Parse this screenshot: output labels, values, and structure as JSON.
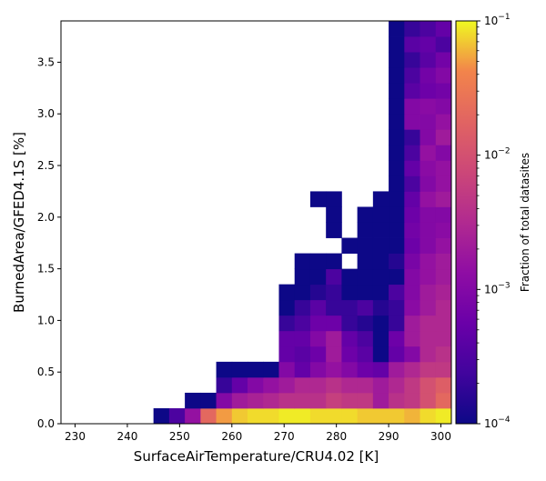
{
  "chart_data": {
    "type": "heatmap",
    "xlabel": "SurfaceAirTemperature/CRU4.02 [K]",
    "ylabel": "BurnedArea/GFED4.1S [%]",
    "xlim": [
      227.3,
      302.0
    ],
    "ylim": [
      0.0,
      3.9
    ],
    "x_ticks": [
      230,
      240,
      250,
      260,
      270,
      280,
      290,
      300
    ],
    "y_ticks": [
      0.0,
      0.5,
      1.0,
      1.5,
      2.0,
      2.5,
      3.0,
      3.5
    ],
    "x_tick_labels": [
      "230",
      "240",
      "250",
      "260",
      "270",
      "280",
      "290",
      "300"
    ],
    "y_tick_labels": [
      "0.0",
      "0.5",
      "1.0",
      "1.5",
      "2.0",
      "2.5",
      "3.0",
      "3.5"
    ],
    "x_bin_edges_start": 245.0,
    "x_bin_width": 3.0,
    "y_bin_width": 0.15,
    "colormap": "plasma",
    "color_scale": "log",
    "colorbar": {
      "label": "Fraction of total datasites",
      "min": 0.0001,
      "max": 0.1,
      "ticks": [
        {
          "base": "10",
          "exp": "−4",
          "value": 0.0001
        },
        {
          "base": "10",
          "exp": "−3",
          "value": 0.001
        },
        {
          "base": "10",
          "exp": "−2",
          "value": 0.01
        },
        {
          "base": "10",
          "exp": "−1",
          "value": 0.1
        }
      ]
    },
    "cells": [
      [
        245.0,
        0.0,
        0.0001
      ],
      [
        248.0,
        0.0,
        0.0003
      ],
      [
        251.0,
        0.0,
        0.0015
      ],
      [
        254.0,
        0.0,
        0.02
      ],
      [
        257.0,
        0.0,
        0.05
      ],
      [
        260.0,
        0.0,
        0.07
      ],
      [
        263.0,
        0.0,
        0.08
      ],
      [
        266.0,
        0.0,
        0.08
      ],
      [
        269.0,
        0.0,
        0.09
      ],
      [
        272.0,
        0.0,
        0.09
      ],
      [
        275.0,
        0.0,
        0.08
      ],
      [
        278.0,
        0.0,
        0.08
      ],
      [
        281.0,
        0.0,
        0.08
      ],
      [
        284.0,
        0.0,
        0.07
      ],
      [
        287.0,
        0.0,
        0.07
      ],
      [
        290.0,
        0.0,
        0.07
      ],
      [
        293.0,
        0.0,
        0.06
      ],
      [
        296.0,
        0.0,
        0.08
      ],
      [
        299.0,
        0.0,
        0.09
      ],
      [
        251.0,
        0.15,
        0.0001
      ],
      [
        254.0,
        0.15,
        0.0001
      ],
      [
        257.0,
        0.15,
        0.001
      ],
      [
        260.0,
        0.15,
        0.002
      ],
      [
        263.0,
        0.15,
        0.0025
      ],
      [
        266.0,
        0.15,
        0.003
      ],
      [
        269.0,
        0.15,
        0.004
      ],
      [
        272.0,
        0.15,
        0.004
      ],
      [
        275.0,
        0.15,
        0.004
      ],
      [
        278.0,
        0.15,
        0.006
      ],
      [
        281.0,
        0.15,
        0.005
      ],
      [
        284.0,
        0.15,
        0.005
      ],
      [
        287.0,
        0.15,
        0.002
      ],
      [
        290.0,
        0.15,
        0.004
      ],
      [
        293.0,
        0.15,
        0.005
      ],
      [
        296.0,
        0.15,
        0.01
      ],
      [
        299.0,
        0.15,
        0.02
      ],
      [
        257.0,
        0.3,
        0.0002
      ],
      [
        260.0,
        0.3,
        0.0005
      ],
      [
        263.0,
        0.3,
        0.001
      ],
      [
        266.0,
        0.3,
        0.0015
      ],
      [
        269.0,
        0.3,
        0.002
      ],
      [
        272.0,
        0.3,
        0.003
      ],
      [
        275.0,
        0.3,
        0.003
      ],
      [
        278.0,
        0.3,
        0.004
      ],
      [
        281.0,
        0.3,
        0.003
      ],
      [
        284.0,
        0.3,
        0.003
      ],
      [
        287.0,
        0.3,
        0.002
      ],
      [
        290.0,
        0.3,
        0.003
      ],
      [
        293.0,
        0.3,
        0.005
      ],
      [
        296.0,
        0.3,
        0.01
      ],
      [
        299.0,
        0.3,
        0.015
      ],
      [
        257.0,
        0.45,
        0.0001
      ],
      [
        260.0,
        0.45,
        0.0001
      ],
      [
        263.0,
        0.45,
        0.0001
      ],
      [
        266.0,
        0.45,
        0.0001
      ],
      [
        269.0,
        0.45,
        0.001
      ],
      [
        272.0,
        0.45,
        0.0005
      ],
      [
        275.0,
        0.45,
        0.001
      ],
      [
        278.0,
        0.45,
        0.0015
      ],
      [
        281.0,
        0.45,
        0.001
      ],
      [
        284.0,
        0.45,
        0.0006
      ],
      [
        287.0,
        0.45,
        0.0005
      ],
      [
        290.0,
        0.45,
        0.002
      ],
      [
        293.0,
        0.45,
        0.003
      ],
      [
        296.0,
        0.45,
        0.005
      ],
      [
        299.0,
        0.45,
        0.005
      ],
      [
        269.0,
        0.6,
        0.0005
      ],
      [
        272.0,
        0.6,
        0.0004
      ],
      [
        275.0,
        0.6,
        0.0006
      ],
      [
        278.0,
        0.6,
        0.002
      ],
      [
        281.0,
        0.6,
        0.0006
      ],
      [
        284.0,
        0.6,
        0.0004
      ],
      [
        287.0,
        0.6,
        0.0001
      ],
      [
        290.0,
        0.6,
        0.0005
      ],
      [
        293.0,
        0.6,
        0.001
      ],
      [
        296.0,
        0.6,
        0.003
      ],
      [
        299.0,
        0.6,
        0.004
      ],
      [
        269.0,
        0.75,
        0.0005
      ],
      [
        272.0,
        0.75,
        0.0005
      ],
      [
        275.0,
        0.75,
        0.001
      ],
      [
        278.0,
        0.75,
        0.002
      ],
      [
        281.0,
        0.75,
        0.0005
      ],
      [
        284.0,
        0.75,
        0.0003
      ],
      [
        287.0,
        0.75,
        0.0001
      ],
      [
        290.0,
        0.75,
        0.0006
      ],
      [
        293.0,
        0.75,
        0.002
      ],
      [
        296.0,
        0.75,
        0.003
      ],
      [
        299.0,
        0.75,
        0.003
      ],
      [
        269.0,
        0.9,
        0.0002
      ],
      [
        272.0,
        0.9,
        0.0003
      ],
      [
        275.0,
        0.9,
        0.0006
      ],
      [
        278.0,
        0.9,
        0.0006
      ],
      [
        281.0,
        0.9,
        0.0002
      ],
      [
        284.0,
        0.9,
        0.00015
      ],
      [
        287.0,
        0.9,
        0.0001
      ],
      [
        290.0,
        0.9,
        0.0002
      ],
      [
        293.0,
        0.9,
        0.002
      ],
      [
        296.0,
        0.9,
        0.003
      ],
      [
        299.0,
        0.9,
        0.003
      ],
      [
        269.0,
        1.05,
        0.0001
      ],
      [
        272.0,
        1.05,
        0.0002
      ],
      [
        275.0,
        1.05,
        0.0004
      ],
      [
        278.0,
        1.05,
        0.0002
      ],
      [
        281.0,
        1.05,
        0.0002
      ],
      [
        284.0,
        1.05,
        0.0003
      ],
      [
        287.0,
        1.05,
        0.00015
      ],
      [
        290.0,
        1.05,
        0.0002
      ],
      [
        293.0,
        1.05,
        0.0012
      ],
      [
        296.0,
        1.05,
        0.002
      ],
      [
        299.0,
        1.05,
        0.003
      ],
      [
        269.0,
        1.2,
        0.0001
      ],
      [
        272.0,
        1.2,
        0.0001
      ],
      [
        275.0,
        1.2,
        0.00015
      ],
      [
        278.0,
        1.2,
        0.0002
      ],
      [
        281.0,
        1.2,
        0.0001
      ],
      [
        284.0,
        1.2,
        0.0001
      ],
      [
        287.0,
        1.2,
        0.0001
      ],
      [
        290.0,
        1.2,
        0.0003
      ],
      [
        293.0,
        1.2,
        0.001
      ],
      [
        296.0,
        1.2,
        0.002
      ],
      [
        299.0,
        1.2,
        0.0025
      ],
      [
        272.0,
        1.35,
        0.0001
      ],
      [
        275.0,
        1.35,
        0.0001
      ],
      [
        278.0,
        1.35,
        0.0003
      ],
      [
        281.0,
        1.35,
        0.0001
      ],
      [
        284.0,
        1.35,
        0.0001
      ],
      [
        287.0,
        1.35,
        0.0001
      ],
      [
        290.0,
        1.35,
        0.0001
      ],
      [
        293.0,
        1.35,
        0.001
      ],
      [
        296.0,
        1.35,
        0.0015
      ],
      [
        299.0,
        1.35,
        0.002
      ],
      [
        272.0,
        1.5,
        0.0001
      ],
      [
        275.0,
        1.5,
        0.0001
      ],
      [
        278.0,
        1.5,
        0.0001
      ],
      [
        284.0,
        1.5,
        0.0001
      ],
      [
        287.0,
        1.5,
        0.0001
      ],
      [
        290.0,
        1.5,
        0.00015
      ],
      [
        293.0,
        1.5,
        0.0008
      ],
      [
        296.0,
        1.5,
        0.0015
      ],
      [
        299.0,
        1.5,
        0.002
      ],
      [
        281.0,
        1.65,
        0.0001
      ],
      [
        284.0,
        1.65,
        0.0001
      ],
      [
        287.0,
        1.65,
        0.0001
      ],
      [
        290.0,
        1.65,
        0.0001
      ],
      [
        293.0,
        1.65,
        0.0006
      ],
      [
        296.0,
        1.65,
        0.001
      ],
      [
        299.0,
        1.65,
        0.0015
      ],
      [
        278.0,
        1.8,
        0.0001
      ],
      [
        284.0,
        1.8,
        0.0001
      ],
      [
        287.0,
        1.8,
        0.0001
      ],
      [
        290.0,
        1.8,
        0.0001
      ],
      [
        293.0,
        1.8,
        0.0007
      ],
      [
        296.0,
        1.8,
        0.001
      ],
      [
        299.0,
        1.8,
        0.0012
      ],
      [
        278.0,
        1.95,
        0.0001
      ],
      [
        284.0,
        1.95,
        0.0001
      ],
      [
        287.0,
        1.95,
        0.0001
      ],
      [
        290.0,
        1.95,
        0.0001
      ],
      [
        293.0,
        1.95,
        0.0006
      ],
      [
        296.0,
        1.95,
        0.001
      ],
      [
        299.0,
        1.95,
        0.001
      ],
      [
        275.0,
        2.1,
        0.0001
      ],
      [
        278.0,
        2.1,
        0.0001
      ],
      [
        287.0,
        2.1,
        0.0001
      ],
      [
        290.0,
        2.1,
        0.0001
      ],
      [
        293.0,
        2.1,
        0.0005
      ],
      [
        296.0,
        2.1,
        0.0015
      ],
      [
        299.0,
        2.1,
        0.002
      ],
      [
        290.0,
        2.25,
        0.0001
      ],
      [
        293.0,
        2.25,
        0.0003
      ],
      [
        296.0,
        2.25,
        0.001
      ],
      [
        299.0,
        2.25,
        0.0015
      ],
      [
        290.0,
        2.4,
        0.0001
      ],
      [
        293.0,
        2.4,
        0.0005
      ],
      [
        296.0,
        2.4,
        0.0012
      ],
      [
        299.0,
        2.4,
        0.0015
      ],
      [
        290.0,
        2.55,
        0.0001
      ],
      [
        293.0,
        2.55,
        0.0003
      ],
      [
        296.0,
        2.55,
        0.0015
      ],
      [
        299.0,
        2.55,
        0.001
      ],
      [
        290.0,
        2.7,
        0.0001
      ],
      [
        293.0,
        2.7,
        0.0002
      ],
      [
        296.0,
        2.7,
        0.001
      ],
      [
        299.0,
        2.7,
        0.002
      ],
      [
        290.0,
        2.85,
        0.0001
      ],
      [
        293.0,
        2.85,
        0.001
      ],
      [
        296.0,
        2.85,
        0.001
      ],
      [
        299.0,
        2.85,
        0.0015
      ],
      [
        290.0,
        3.0,
        0.0001
      ],
      [
        293.0,
        3.0,
        0.001
      ],
      [
        296.0,
        3.0,
        0.0012
      ],
      [
        299.0,
        3.0,
        0.001
      ],
      [
        290.0,
        3.15,
        0.0001
      ],
      [
        293.0,
        3.15,
        0.0004
      ],
      [
        296.0,
        3.15,
        0.0006
      ],
      [
        299.0,
        3.15,
        0.0007
      ],
      [
        290.0,
        3.3,
        0.0001
      ],
      [
        293.0,
        3.3,
        0.0003
      ],
      [
        296.0,
        3.3,
        0.0007
      ],
      [
        299.0,
        3.3,
        0.001
      ],
      [
        290.0,
        3.45,
        0.0001
      ],
      [
        293.0,
        3.45,
        0.0002
      ],
      [
        296.0,
        3.45,
        0.0004
      ],
      [
        299.0,
        3.45,
        0.0007
      ],
      [
        290.0,
        3.6,
        0.0001
      ],
      [
        293.0,
        3.6,
        0.0004
      ],
      [
        296.0,
        3.6,
        0.0005
      ],
      [
        299.0,
        3.6,
        0.0003
      ],
      [
        290.0,
        3.75,
        0.0001
      ],
      [
        293.0,
        3.75,
        0.0002
      ],
      [
        296.0,
        3.75,
        0.0003
      ],
      [
        299.0,
        3.75,
        0.0005
      ]
    ]
  }
}
